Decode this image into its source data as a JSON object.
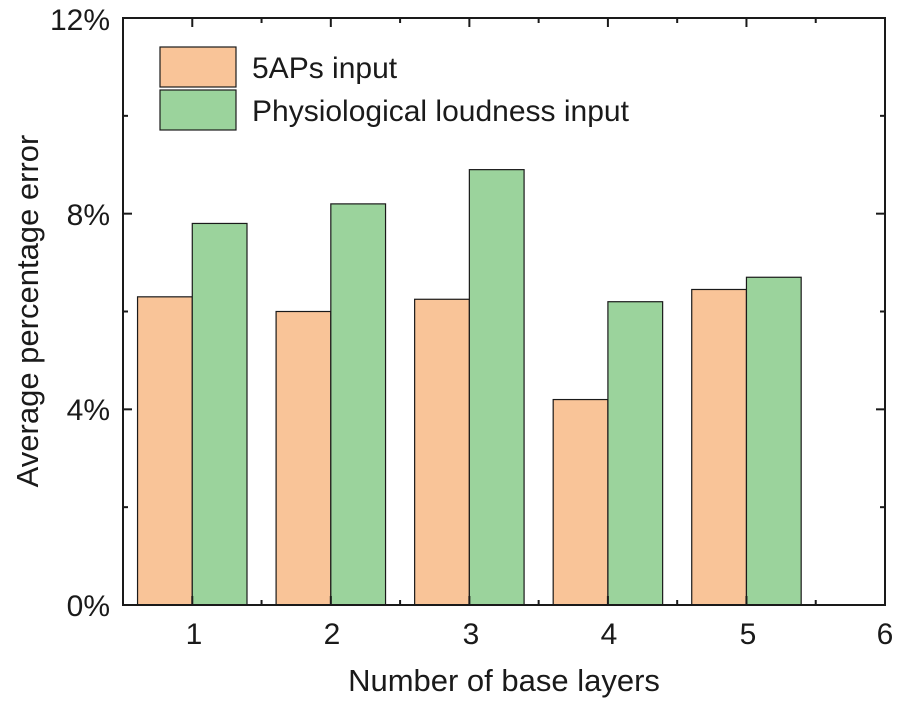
{
  "chart_data": {
    "type": "bar",
    "xlabel": "Number of base layers",
    "ylabel": "Average percentage error",
    "x_ticks": [
      "1",
      "2",
      "3",
      "4",
      "5",
      "6"
    ],
    "y_ticks": [
      "0%",
      "4%",
      "8%",
      "12%"
    ],
    "xlim": [
      0.5,
      6
    ],
    "ylim": [
      0,
      12
    ],
    "categories": [
      1,
      2,
      3,
      4,
      5
    ],
    "series": [
      {
        "name": "5APs input",
        "color": "#f9c498",
        "values": [
          6.3,
          6.0,
          6.25,
          4.2,
          6.45
        ]
      },
      {
        "name": "Physiological loudness input",
        "color": "#9bd39c",
        "values": [
          7.8,
          8.2,
          8.9,
          6.2,
          6.7
        ]
      }
    ],
    "legend": "top-left",
    "grid": false
  }
}
